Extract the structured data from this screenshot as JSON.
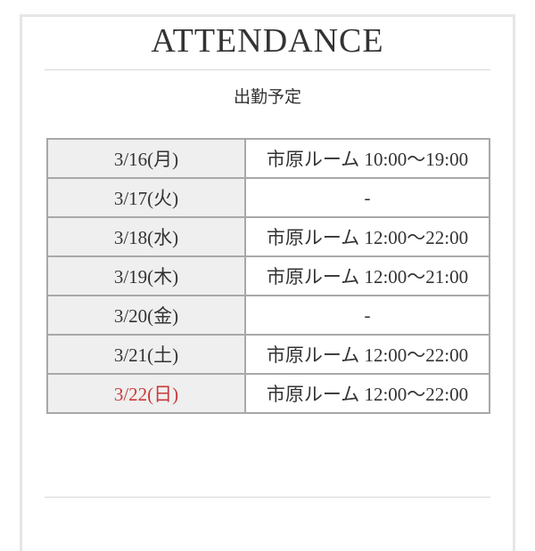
{
  "header": {
    "title": "ATTENDANCE",
    "subtitle": "出勤予定"
  },
  "colors": {
    "sunday": "#c83a3a",
    "date_cell_bg": "#efefef",
    "border": "#a8a8a8"
  },
  "schedule": [
    {
      "date": "3/16(月)",
      "shift": "市原ルーム 10:00〜19:00",
      "sunday": false
    },
    {
      "date": "3/17(火)",
      "shift": "-",
      "sunday": false
    },
    {
      "date": "3/18(水)",
      "shift": "市原ルーム 12:00〜22:00",
      "sunday": false
    },
    {
      "date": "3/19(木)",
      "shift": "市原ルーム 12:00〜21:00",
      "sunday": false
    },
    {
      "date": "3/20(金)",
      "shift": "-",
      "sunday": false
    },
    {
      "date": "3/21(土)",
      "shift": "市原ルーム 12:00〜22:00",
      "sunday": false
    },
    {
      "date": "3/22(日)",
      "shift": "市原ルーム 12:00〜22:00",
      "sunday": true
    }
  ]
}
